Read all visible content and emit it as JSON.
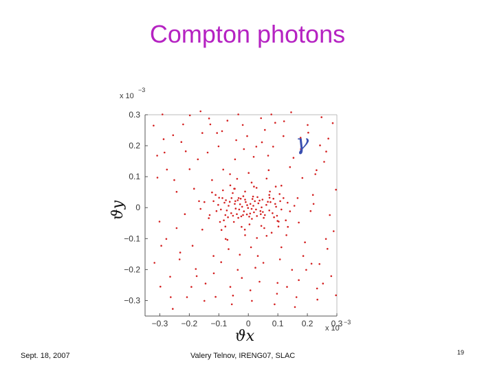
{
  "title": "Compton photons",
  "colors": {
    "title": "#b522c2",
    "points": "#d42020",
    "gamma": "#3a4fb0"
  },
  "footer": {
    "date": "Sept. 18, 2007",
    "author": "Valery Telnov, IRENG07, SLAC",
    "page": "19"
  },
  "chart_data": {
    "type": "scatter",
    "title": "",
    "xlabel": "ϑx",
    "ylabel": "ϑy",
    "xlim": [
      -0.35,
      0.3
    ],
    "ylim": [
      -0.35,
      0.3
    ],
    "x_ticks": [
      -0.3,
      -0.2,
      -0.1,
      0,
      0.1,
      0.2,
      0.3
    ],
    "y_ticks": [
      0.3,
      0.2,
      0.1,
      0,
      -0.1,
      -0.2,
      -0.3
    ],
    "x_tick_labels": [
      "−0.3",
      "−0.2",
      "−0.1",
      "0",
      "0.1",
      "0.2",
      "0.3"
    ],
    "y_tick_labels": [
      "0.3",
      "0.2",
      "0.1",
      "0",
      "−0.1",
      "−0.2",
      "−0.3"
    ],
    "x_scale_label": "x 10",
    "x_scale_exp": "−3",
    "y_scale_label": "x 10",
    "y_scale_exp": "−3",
    "annotation": "γ",
    "grid": false,
    "series": [
      {
        "points": [
          [
            -0.212,
            0.182
          ],
          [
            0.078,
            0.301
          ],
          [
            -0.156,
            -0.071
          ],
          [
            0.241,
            -0.182
          ],
          [
            -0.089,
            0.247
          ],
          [
            0.183,
            0.096
          ],
          [
            -0.298,
            -0.255
          ],
          [
            0.012,
            -0.301
          ],
          [
            -0.243,
            0.051
          ],
          [
            0.134,
            -0.062
          ],
          [
            -0.045,
            0.156
          ],
          [
            0.271,
            0.223
          ],
          [
            -0.178,
            -0.198
          ],
          [
            0.099,
            -0.243
          ],
          [
            -0.321,
            0.265
          ],
          [
            0.221,
            0.012
          ],
          [
            -0.067,
            -0.134
          ],
          [
            0.046,
            0.211
          ],
          [
            -0.133,
            0.288
          ],
          [
            0.163,
            -0.289
          ],
          [
            -0.278,
            -0.101
          ],
          [
            0.257,
            0.148
          ],
          [
            -0.022,
            -0.227
          ],
          [
            0.112,
            0.071
          ],
          [
            -0.199,
            0.124
          ],
          [
            0.032,
            -0.156
          ],
          [
            -0.256,
            -0.327
          ],
          [
            0.201,
            0.267
          ],
          [
            -0.111,
            -0.288
          ],
          [
            0.289,
            -0.076
          ],
          [
            -0.309,
            0.168
          ],
          [
            0.067,
            0.168
          ],
          [
            -0.167,
            0.021
          ],
          [
            0.148,
            -0.201
          ],
          [
            -0.034,
            0.301
          ],
          [
            0.233,
            -0.261
          ],
          [
            -0.233,
            -0.167
          ],
          [
            0.001,
            0.112
          ],
          [
            -0.287,
            0.221
          ],
          [
            0.178,
            0.189
          ],
          [
            -0.078,
            -0.061
          ],
          [
            0.121,
            0.279
          ],
          [
            -0.145,
            -0.245
          ],
          [
            0.268,
            -0.133
          ],
          [
            -0.011,
            -0.089
          ],
          [
            0.089,
            -0.312
          ],
          [
            -0.221,
            0.269
          ],
          [
            0.192,
            -0.112
          ],
          [
            -0.101,
            0.198
          ],
          [
            0.056,
            0.251
          ],
          [
            -0.265,
            -0.223
          ],
          [
            0.211,
            -0.011
          ],
          [
            -0.056,
            -0.312
          ],
          [
            0.141,
            0.131
          ],
          [
            -0.189,
            -0.123
          ],
          [
            0.297,
            0.058
          ],
          [
            -0.123,
            0.089
          ],
          [
            0.024,
            -0.194
          ],
          [
            -0.301,
            -0.045
          ],
          [
            0.171,
            -0.234
          ],
          [
            -0.041,
            0.218
          ],
          [
            0.248,
            0.292
          ],
          [
            -0.208,
            -0.289
          ],
          [
            0.073,
            0.052
          ],
          [
            -0.156,
            0.241
          ],
          [
            0.227,
            0.108
          ],
          [
            -0.276,
            0.123
          ],
          [
            0.107,
            -0.167
          ],
          [
            -0.019,
            0.267
          ],
          [
            0.158,
            -0.321
          ],
          [
            -0.243,
            -0.066
          ],
          [
            0.281,
            -0.221
          ],
          [
            -0.092,
            -0.176
          ],
          [
            0.043,
            0.289
          ],
          [
            -0.171,
            0.156
          ],
          [
            0.203,
            0.242
          ],
          [
            -0.061,
            -0.256
          ],
          [
            0.129,
            -0.089
          ],
          [
            -0.318,
            -0.178
          ],
          [
            0.084,
            0.197
          ],
          [
            -0.134,
            -0.034
          ],
          [
            0.264,
            0.181
          ],
          [
            -0.227,
            0.212
          ],
          [
            0.007,
            -0.267
          ],
          [
            -0.085,
            0.123
          ],
          [
            0.186,
            -0.156
          ],
          [
            -0.291,
            0.301
          ],
          [
            0.119,
            0.231
          ],
          [
            -0.048,
            0.061
          ],
          [
            0.234,
            -0.297
          ],
          [
            -0.193,
            -0.256
          ],
          [
            0.062,
            -0.091
          ],
          [
            -0.162,
            0.311
          ],
          [
            0.276,
            -0.024
          ],
          [
            -0.029,
            -0.152
          ],
          [
            0.153,
            0.161
          ],
          [
            -0.251,
            0.089
          ],
          [
            0.097,
            -0.278
          ],
          [
            -0.117,
            -0.212
          ],
          [
            0.219,
            0.041
          ],
          [
            -0.071,
            0.281
          ],
          [
            0.018,
            0.164
          ],
          [
            -0.215,
            -0.021
          ],
          [
            0.171,
            -0.048
          ],
          [
            -0.308,
            0.097
          ],
          [
            0.253,
            -0.245
          ],
          [
            -0.138,
            0.178
          ],
          [
            0.038,
            -0.239
          ],
          [
            -0.004,
            0.231
          ],
          [
            0.145,
            0.308
          ],
          [
            -0.263,
            -0.289
          ],
          [
            0.112,
            -0.128
          ],
          [
            -0.184,
            0.061
          ],
          [
            0.286,
            0.273
          ],
          [
            -0.052,
            -0.284
          ],
          [
            0.196,
            -0.201
          ],
          [
            -0.106,
            0.241
          ],
          [
            0.069,
            0.121
          ],
          [
            -0.231,
            -0.145
          ],
          [
            0.243,
            0.201
          ],
          [
            -0.149,
            -0.301
          ],
          [
            0.027,
            0.197
          ],
          [
            -0.284,
            0.178
          ],
          [
            0.167,
            0.031
          ],
          [
            -0.077,
            -0.101
          ],
          [
            0.131,
            -0.256
          ],
          [
            -0.198,
            0.298
          ],
          [
            0.263,
            -0.101
          ],
          [
            -0.036,
            -0.201
          ],
          [
            0.091,
            0.274
          ],
          [
            -0.255,
            0.234
          ],
          [
            0.214,
            -0.181
          ],
          [
            -0.118,
            -0.156
          ],
          [
            0.051,
            -0.178
          ],
          [
            -0.175,
            -0.221
          ],
          [
            0.297,
            -0.283
          ],
          [
            -0.015,
            0.189
          ],
          [
            0.177,
            0.226
          ],
          [
            -0.062,
            0.108
          ],
          [
            0.103,
            -0.045
          ],
          [
            -0.295,
            -0.123
          ],
          [
            0.231,
            0.121
          ],
          [
            -0.129,
            0.269
          ],
          [
            0.009,
            -0.128
          ],
          [
            -0.033,
            0.031
          ],
          [
            0.042,
            -0.021
          ],
          [
            -0.049,
            -0.046
          ],
          [
            0.028,
            0.064
          ],
          [
            -0.061,
            0.072
          ],
          [
            0.071,
            0.041
          ],
          [
            -0.012,
            -0.071
          ],
          [
            0.054,
            -0.066
          ],
          [
            -0.076,
            0.024
          ],
          [
            0.087,
            -0.031
          ],
          [
            0.011,
            0.081
          ],
          [
            -0.024,
            -0.028
          ],
          [
            -0.071,
            -0.104
          ],
          [
            0.062,
            0.094
          ],
          [
            -0.091,
            -0.072
          ],
          [
            0.029,
            -0.098
          ],
          [
            -0.038,
            0.093
          ],
          [
            0.093,
            0.068
          ],
          [
            0.016,
            0.036
          ],
          [
            -0.053,
            0.047
          ],
          [
            -0.086,
            0.056
          ],
          [
            0.108,
            0.021
          ],
          [
            -0.108,
            -0.011
          ],
          [
            0.079,
            -0.081
          ],
          [
            -0.099,
            0.032
          ],
          [
            0.102,
            -0.061
          ],
          [
            -0.083,
            -0.041
          ],
          [
            0.119,
            0.031
          ],
          [
            -0.118,
            0.021
          ],
          [
            0.091,
            0.012
          ],
          [
            -0.046,
            0.012
          ],
          [
            0.061,
            0.009
          ],
          [
            -0.004,
            0.008
          ],
          [
            0.011,
            -0.004
          ],
          [
            -0.021,
            0.003
          ],
          [
            0.034,
            0.014
          ],
          [
            -0.015,
            -0.012
          ],
          [
            0.022,
            0.021
          ],
          [
            -0.031,
            -0.006
          ],
          [
            0.006,
            -0.019
          ],
          [
            -0.009,
            0.018
          ],
          [
            0.041,
            -0.011
          ],
          [
            -0.058,
            -0.018
          ],
          [
            0.048,
            0.026
          ],
          [
            -0.036,
            0.024
          ],
          [
            0.029,
            -0.027
          ],
          [
            -0.026,
            0.029
          ],
          [
            0.017,
            0.006
          ],
          [
            -0.067,
            0.006
          ],
          [
            0.071,
            -0.009
          ],
          [
            -0.073,
            -0.009
          ],
          [
            0.075,
            0.018
          ],
          [
            -0.081,
            0.016
          ],
          [
            0.082,
            -0.018
          ],
          [
            -0.093,
            -0.006
          ],
          [
            0.094,
            0.003
          ],
          [
            -0.052,
            -0.026
          ],
          [
            0.056,
            -0.024
          ],
          [
            -0.044,
            0.021
          ],
          [
            0.038,
            0.023
          ],
          [
            -0.011,
            0.026
          ],
          [
            0.003,
            -0.029
          ],
          [
            -0.018,
            -0.024
          ],
          [
            0.014,
            0.028
          ],
          [
            -0.039,
            -0.021
          ],
          [
            0.049,
            -0.014
          ],
          [
            -0.063,
            0.019
          ],
          [
            0.066,
            0.019
          ],
          [
            -0.057,
            0.031
          ],
          [
            0.052,
            -0.033
          ],
          [
            -0.001,
            -0.001
          ],
          [
            0.007,
            0.012
          ],
          [
            -0.028,
            0.011
          ],
          [
            0.026,
            -0.006
          ],
          [
            -0.043,
            -0.003
          ],
          [
            0.045,
            0.001
          ],
          [
            -0.005,
            -0.022
          ],
          [
            0.019,
            -0.015
          ],
          [
            -0.078,
            -0.024
          ],
          [
            0.085,
            0.029
          ],
          [
            -0.088,
            0.031
          ],
          [
            0.097,
            -0.026
          ],
          [
            -0.102,
            0.009
          ],
          [
            0.112,
            -0.006
          ],
          [
            -0.069,
            -0.031
          ],
          [
            0.072,
            0.032
          ],
          [
            -0.034,
            -0.033
          ],
          [
            0.031,
            0.034
          ],
          [
            -0.017,
            0.037
          ],
          [
            0.012,
            -0.036
          ],
          [
            -0.149,
            0.018
          ],
          [
            0.141,
            -0.012
          ],
          [
            -0.131,
            -0.024
          ],
          [
            0.133,
            0.016
          ],
          [
            -0.162,
            -0.004
          ],
          [
            0.156,
            0.006
          ],
          [
            -0.111,
            0.041
          ],
          [
            0.106,
            0.044
          ],
          [
            -0.096,
            -0.046
          ],
          [
            0.099,
            -0.043
          ],
          [
            -0.123,
            0.049
          ],
          [
            0.127,
            -0.041
          ],
          [
            -0.011,
            0.052
          ],
          [
            0.004,
            -0.054
          ],
          [
            -0.046,
            0.061
          ],
          [
            0.044,
            -0.059
          ],
          [
            0.019,
            0.068
          ],
          [
            -0.023,
            -0.062
          ]
        ]
      }
    ]
  }
}
